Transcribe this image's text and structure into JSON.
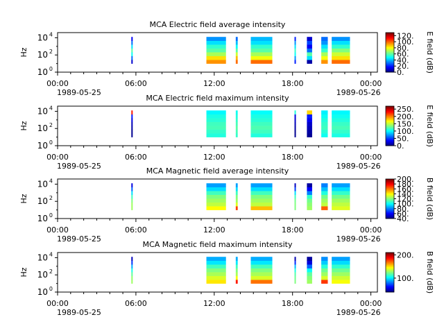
{
  "chart_data": [
    {
      "type": "heatmap",
      "title": "MCA  Electric field average intensity",
      "ylabel": "Hz",
      "colorbar_label": "E field (dB)",
      "colorbar_range": [
        0,
        130
      ],
      "colorbar_ticks": [
        "0.",
        "20.",
        "40.",
        "60.",
        "80.",
        "100.",
        "120."
      ],
      "colorbar_tick_values": [
        0,
        20,
        40,
        60,
        80,
        100,
        120
      ],
      "y_tick_labels": [
        {
          "base": "10",
          "exp": "0"
        },
        {
          "base": "10",
          "exp": "2"
        },
        {
          "base": "10",
          "exp": "4"
        }
      ],
      "x_tick_labels": [
        [
          "00:00",
          "1989-05-25"
        ],
        [
          "06:00",
          ""
        ],
        [
          "12:00",
          ""
        ],
        [
          "18:00",
          ""
        ],
        [
          "00:00",
          "1989-05-26"
        ]
      ],
      "segments": [
        {
          "start": 5.65,
          "end": 5.75,
          "profile": [
            10,
            30,
            50,
            60,
            45,
            30,
            15
          ]
        },
        {
          "start": 11.4,
          "end": 12.9,
          "profile": [
            95,
            85,
            70,
            60,
            55,
            45,
            35
          ]
        },
        {
          "start": 13.65,
          "end": 13.8,
          "profile": [
            100,
            90,
            75,
            60,
            50,
            40,
            30
          ]
        },
        {
          "start": 14.8,
          "end": 16.45,
          "profile": [
            100,
            80,
            70,
            60,
            55,
            45,
            40
          ]
        },
        {
          "start": 18.15,
          "end": 18.25,
          "profile": [
            20,
            35,
            50,
            55,
            45,
            35,
            20
          ]
        },
        {
          "start": 19.1,
          "end": 19.5,
          "profile": [
            5,
            45,
            60,
            30,
            15,
            25,
            10
          ]
        },
        {
          "start": 20.2,
          "end": 20.7,
          "profile": [
            95,
            80,
            70,
            55,
            45,
            35,
            30
          ]
        },
        {
          "start": 21.0,
          "end": 22.4,
          "profile": [
            100,
            85,
            75,
            65,
            55,
            45,
            35
          ]
        }
      ]
    },
    {
      "type": "heatmap",
      "title": "MCA  Electric field maximum intensity",
      "ylabel": "Hz",
      "colorbar_label": "E field (dB)",
      "colorbar_range": [
        0,
        270
      ],
      "colorbar_ticks": [
        "0.",
        "50.",
        "100.",
        "150.",
        "200.",
        "250."
      ],
      "colorbar_tick_values": [
        0,
        50,
        100,
        150,
        200,
        250
      ],
      "y_tick_labels": [
        {
          "base": "10",
          "exp": "0"
        },
        {
          "base": "10",
          "exp": "2"
        },
        {
          "base": "10",
          "exp": "4"
        }
      ],
      "x_tick_labels": [
        [
          "00:00",
          "1989-05-25"
        ],
        [
          "06:00",
          ""
        ],
        [
          "12:00",
          ""
        ],
        [
          "18:00",
          ""
        ],
        [
          "00:00",
          "1989-05-26"
        ]
      ],
      "segments": [
        {
          "start": 5.65,
          "end": 5.75,
          "profile": [
            5,
            5,
            10,
            15,
            25,
            40,
            230
          ]
        },
        {
          "start": 11.4,
          "end": 12.9,
          "profile": [
            110,
            115,
            120,
            118,
            112,
            108,
            100
          ]
        },
        {
          "start": 13.65,
          "end": 13.8,
          "profile": [
            115,
            120,
            125,
            120,
            115,
            110,
            105
          ]
        },
        {
          "start": 14.8,
          "end": 16.45,
          "profile": [
            110,
            118,
            122,
            118,
            112,
            108,
            102
          ]
        },
        {
          "start": 18.15,
          "end": 18.25,
          "profile": [
            5,
            5,
            10,
            15,
            20,
            25,
            110
          ]
        },
        {
          "start": 19.1,
          "end": 19.5,
          "profile": [
            5,
            10,
            15,
            20,
            30,
            40,
            180
          ]
        },
        {
          "start": 20.2,
          "end": 20.7,
          "profile": [
            105,
            112,
            118,
            115,
            110,
            104,
            98
          ]
        },
        {
          "start": 21.0,
          "end": 22.4,
          "profile": [
            108,
            115,
            120,
            116,
            110,
            105,
            100
          ]
        }
      ]
    },
    {
      "type": "heatmap",
      "title": "MCA  Magnetic field average intensity",
      "ylabel": "Hz",
      "colorbar_label": "B field (dB)",
      "colorbar_range": [
        40,
        200
      ],
      "colorbar_ticks": [
        "40.",
        "60.",
        "80.",
        "100.",
        "120.",
        "140.",
        "160.",
        "180.",
        "200."
      ],
      "colorbar_tick_values": [
        40,
        60,
        80,
        100,
        120,
        140,
        160,
        180,
        200
      ],
      "y_tick_labels": [
        {
          "base": "10",
          "exp": "0"
        },
        {
          "base": "10",
          "exp": "2"
        },
        {
          "base": "10",
          "exp": "4"
        }
      ],
      "x_tick_labels": [
        [
          "00:00",
          "1989-05-25"
        ],
        [
          "06:00",
          ""
        ],
        [
          "12:00",
          ""
        ],
        [
          "18:00",
          ""
        ],
        [
          "00:00",
          "1989-05-26"
        ]
      ],
      "segments": [
        {
          "start": 5.65,
          "end": 5.75,
          "profile": [
            125,
            125,
            120,
            110,
            95,
            75,
            55
          ]
        },
        {
          "start": 11.4,
          "end": 12.9,
          "profile": [
            140,
            130,
            125,
            120,
            110,
            95,
            85
          ]
        },
        {
          "start": 13.65,
          "end": 13.8,
          "profile": [
            170,
            135,
            125,
            120,
            110,
            95,
            85
          ]
        },
        {
          "start": 14.8,
          "end": 16.45,
          "profile": [
            150,
            130,
            125,
            120,
            110,
            95,
            85
          ]
        },
        {
          "start": 18.15,
          "end": 18.25,
          "profile": [
            120,
            120,
            118,
            110,
            95,
            70,
            50
          ]
        },
        {
          "start": 19.1,
          "end": 19.5,
          "profile": [
            125,
            122,
            118,
            108,
            80,
            60,
            45
          ]
        },
        {
          "start": 20.2,
          "end": 20.7,
          "profile": [
            165,
            130,
            125,
            118,
            105,
            90,
            80
          ]
        },
        {
          "start": 21.0,
          "end": 22.4,
          "profile": [
            135,
            130,
            125,
            118,
            108,
            95,
            85
          ]
        }
      ]
    },
    {
      "type": "heatmap",
      "title": "MCA  Magnetic field maximum intensity",
      "ylabel": "Hz",
      "colorbar_label": "B field (dB)",
      "colorbar_range": [
        40,
        210
      ],
      "colorbar_ticks": [
        "100.",
        "200."
      ],
      "colorbar_tick_values": [
        100,
        200
      ],
      "y_tick_labels": [
        {
          "base": "10",
          "exp": "0"
        },
        {
          "base": "10",
          "exp": "2"
        },
        {
          "base": "10",
          "exp": "4"
        }
      ],
      "x_tick_labels": [
        [
          "00:00",
          "1989-05-25"
        ],
        [
          "06:00",
          ""
        ],
        [
          "12:00",
          ""
        ],
        [
          "18:00",
          ""
        ],
        [
          "00:00",
          "1989-05-26"
        ]
      ],
      "segments": [
        {
          "start": 5.65,
          "end": 5.75,
          "profile": [
            130,
            128,
            120,
            108,
            90,
            70,
            50
          ]
        },
        {
          "start": 11.4,
          "end": 12.9,
          "profile": [
            150,
            140,
            132,
            125,
            115,
            100,
            90
          ]
        },
        {
          "start": 13.65,
          "end": 13.8,
          "profile": [
            185,
            145,
            132,
            125,
            115,
            100,
            90
          ]
        },
        {
          "start": 14.8,
          "end": 16.45,
          "profile": [
            170,
            140,
            132,
            125,
            115,
            100,
            90
          ]
        },
        {
          "start": 18.15,
          "end": 18.25,
          "profile": [
            125,
            122,
            118,
            108,
            92,
            68,
            48
          ]
        },
        {
          "start": 19.1,
          "end": 19.5,
          "profile": [
            130,
            126,
            120,
            105,
            78,
            55,
            45
          ]
        },
        {
          "start": 20.2,
          "end": 20.7,
          "profile": [
            180,
            140,
            130,
            122,
            110,
            95,
            85
          ]
        },
        {
          "start": 21.0,
          "end": 22.4,
          "profile": [
            145,
            138,
            130,
            122,
            112,
            98,
            88
          ]
        }
      ]
    }
  ]
}
